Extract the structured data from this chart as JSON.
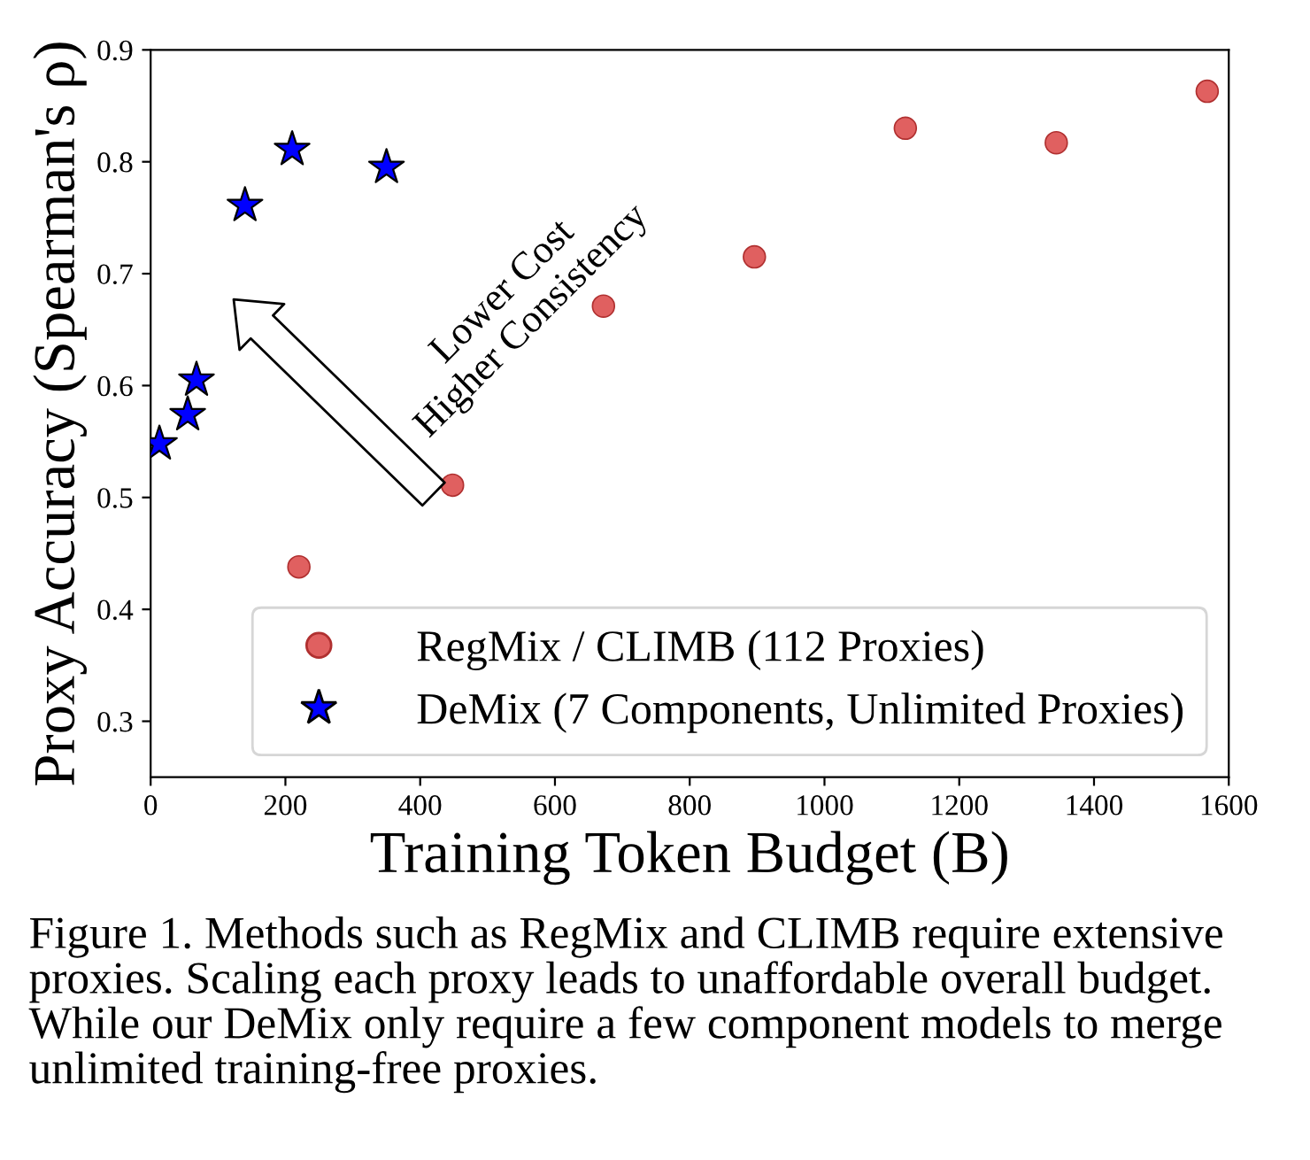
{
  "chart_data": {
    "type": "scatter",
    "xlabel": "Training Token Budget (B)",
    "ylabel": "Proxy Accuracy (Spearman's ρ)",
    "series": [
      {
        "name": "RegMix / CLIMB (112 Proxies)",
        "color": "#e06060",
        "marker": "circle",
        "x": [
          220,
          448,
          672,
          896,
          1120,
          1344,
          1568
        ],
        "values": [
          0.438,
          0.511,
          0.671,
          0.715,
          0.83,
          0.817,
          0.863
        ]
      },
      {
        "name": "DeMix (7 Components, Unlimited Proxies)",
        "color": "#0000ff",
        "marker": "star",
        "x": [
          13,
          55,
          68,
          140,
          210,
          350
        ],
        "values": [
          0.548,
          0.574,
          0.605,
          0.761,
          0.811,
          0.795
        ]
      }
    ],
    "xlim": [
      0,
      1600
    ],
    "xticks": [
      0,
      200,
      400,
      600,
      800,
      1000,
      1200,
      1400,
      1600
    ],
    "ylim": [
      0.25,
      0.9
    ],
    "yticks": [
      0.3,
      0.4,
      0.5,
      0.6,
      0.7,
      0.8,
      0.9
    ],
    "grid": false,
    "legend": "bottom right",
    "annotations": [
      "Lower Cost\nHigher Consistency",
      "Figure 1. Methods such as RegMix and CLIMB require extensive proxies. Scaling each proxy leads to unaffordable overall budget. While our DeMix only require a few component models to merge unlimited training-free proxies."
    ]
  }
}
